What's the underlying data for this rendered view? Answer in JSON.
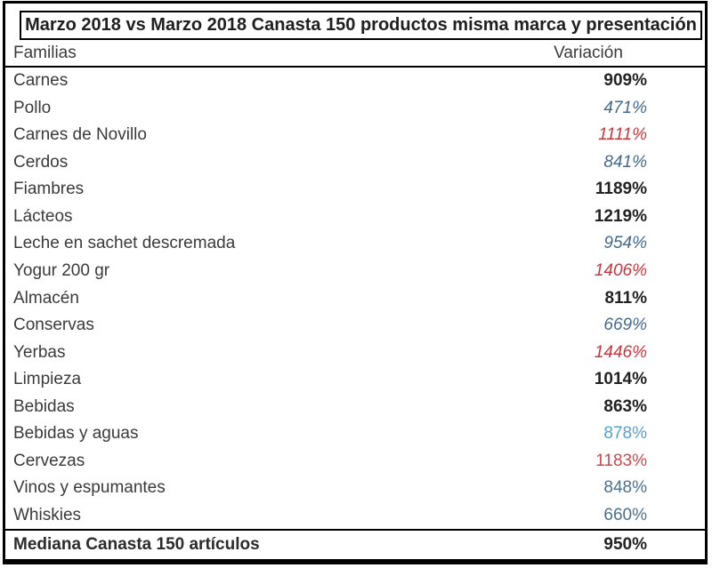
{
  "chart_data": {
    "type": "table",
    "title": "Marzo 2018 vs Marzo 2018 Canasta 150 productos misma marca y presentación",
    "columns": [
      "Familias",
      "Variación"
    ],
    "rows": [
      {
        "family": "Carnes",
        "variation": 909,
        "display": "909%",
        "style": "bold-black"
      },
      {
        "family": "Pollo",
        "variation": 471,
        "display": "471%",
        "style": "italic-blue"
      },
      {
        "family": "Carnes de Novillo",
        "variation": 1111,
        "display": "1111%",
        "style": "italic-red"
      },
      {
        "family": "Cerdos",
        "variation": 841,
        "display": "841%",
        "style": "italic-blue"
      },
      {
        "family": "Fiambres",
        "variation": 1189,
        "display": "1189%",
        "style": "bold-black"
      },
      {
        "family": "Lácteos",
        "variation": 1219,
        "display": "1219%",
        "style": "bold-black"
      },
      {
        "family": "Leche en sachet descremada",
        "variation": 954,
        "display": "954%",
        "style": "italic-blue"
      },
      {
        "family": "Yogur 200 gr",
        "variation": 1406,
        "display": "1406%",
        "style": "italic-red"
      },
      {
        "family": "Almacén",
        "variation": 811,
        "display": "811%",
        "style": "bold-black"
      },
      {
        "family": "Conservas",
        "variation": 669,
        "display": "669%",
        "style": "italic-blue"
      },
      {
        "family": "Yerbas",
        "variation": 1446,
        "display": "1446%",
        "style": "italic-red"
      },
      {
        "family": "Limpieza",
        "variation": 1014,
        "display": "1014%",
        "style": "bold-black"
      },
      {
        "family": "Bebidas",
        "variation": 863,
        "display": "863%",
        "style": "bold-black"
      },
      {
        "family": "Bebidas y aguas",
        "variation": 878,
        "display": "878%",
        "style": "plain-lightblue"
      },
      {
        "family": "Cervezas",
        "variation": 1183,
        "display": "1183%",
        "style": "plain-red"
      },
      {
        "family": "Vinos y espumantes",
        "variation": 848,
        "display": "848%",
        "style": "plain-steelblue"
      },
      {
        "family": "Whiskies",
        "variation": 660,
        "display": "660%",
        "style": "plain-steelblue"
      }
    ],
    "footer": {
      "family": "Mediana Canasta 150 artículos",
      "variation": 950,
      "display": "950%",
      "style": "bold-black"
    }
  },
  "styles": {
    "bold-black": {
      "color": "#222222",
      "weight": "700",
      "fontStyle": "normal"
    },
    "italic-blue": {
      "color": "#44698c",
      "weight": "400",
      "fontStyle": "italic"
    },
    "italic-red": {
      "color": "#c9363c",
      "weight": "400",
      "fontStyle": "italic"
    },
    "plain-lightblue": {
      "color": "#54a0ce",
      "weight": "400",
      "fontStyle": "normal"
    },
    "plain-red": {
      "color": "#d2454b",
      "weight": "400",
      "fontStyle": "normal"
    },
    "plain-steelblue": {
      "color": "#49708f",
      "weight": "400",
      "fontStyle": "normal"
    }
  },
  "colors": {
    "border": "#000000",
    "label_text": "#3a3a3a",
    "title_text": "#1f1f1f"
  }
}
